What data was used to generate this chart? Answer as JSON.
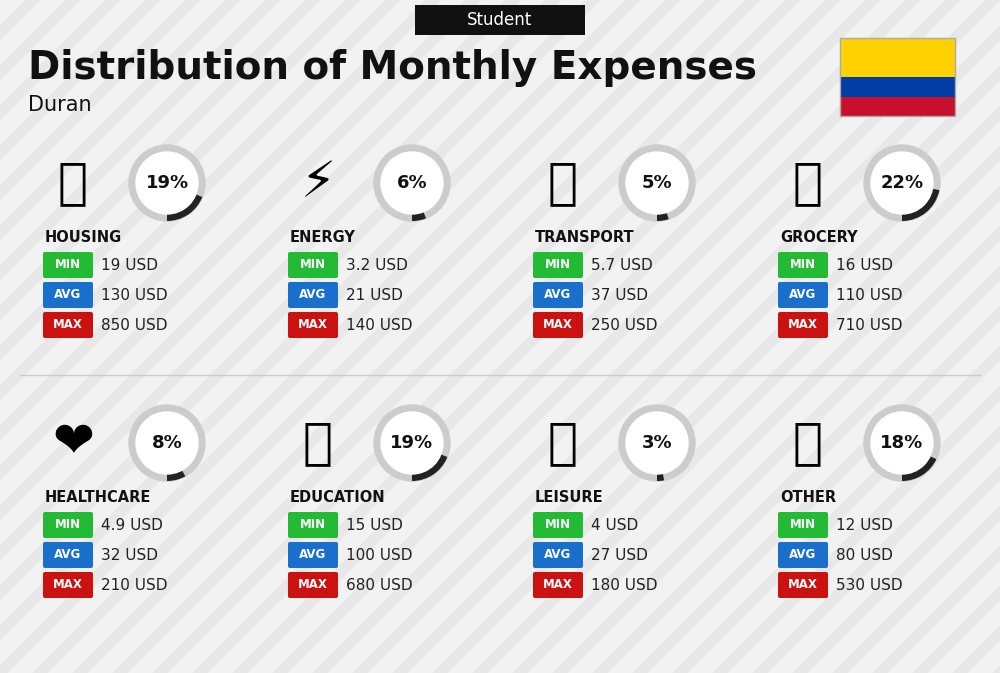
{
  "title": "Distribution of Monthly Expenses",
  "subtitle": "Student",
  "location": "Duran",
  "background_color": "#f2f2f2",
  "categories": [
    {
      "name": "HOUSING",
      "percent": 19,
      "min": "19 USD",
      "avg": "130 USD",
      "max": "850 USD",
      "icon": "🏙",
      "row": 0,
      "col": 0
    },
    {
      "name": "ENERGY",
      "percent": 6,
      "min": "3.2 USD",
      "avg": "21 USD",
      "max": "140 USD",
      "icon": "⚡",
      "row": 0,
      "col": 1
    },
    {
      "name": "TRANSPORT",
      "percent": 5,
      "min": "5.7 USD",
      "avg": "37 USD",
      "max": "250 USD",
      "icon": "🚌",
      "row": 0,
      "col": 2
    },
    {
      "name": "GROCERY",
      "percent": 22,
      "min": "16 USD",
      "avg": "110 USD",
      "max": "710 USD",
      "icon": "🛒",
      "row": 0,
      "col": 3
    },
    {
      "name": "HEALTHCARE",
      "percent": 8,
      "min": "4.9 USD",
      "avg": "32 USD",
      "max": "210 USD",
      "icon": "❤",
      "row": 1,
      "col": 0
    },
    {
      "name": "EDUCATION",
      "percent": 19,
      "min": "15 USD",
      "avg": "100 USD",
      "max": "680 USD",
      "icon": "🎓",
      "row": 1,
      "col": 1
    },
    {
      "name": "LEISURE",
      "percent": 3,
      "min": "4 USD",
      "avg": "27 USD",
      "max": "180 USD",
      "icon": "🛍",
      "row": 1,
      "col": 2
    },
    {
      "name": "OTHER",
      "percent": 18,
      "min": "12 USD",
      "avg": "80 USD",
      "max": "530 USD",
      "icon": "💰",
      "row": 1,
      "col": 3
    }
  ],
  "min_color": "#22bb33",
  "avg_color": "#1a6fcc",
  "max_color": "#cc1111",
  "label_color": "#ffffff",
  "category_name_color": "#111111",
  "value_color": "#222222",
  "circle_bg": "#cccccc",
  "circle_fill": "#222222",
  "percent_color": "#111111",
  "title_color": "#111111",
  "subtitle_bg": "#111111",
  "subtitle_color": "#ffffff",
  "flag_colors": [
    "#FFD100",
    "#003DA5",
    "#C8102E"
  ],
  "stripe_color": "#e0e0e0",
  "divider_color": "#cccccc"
}
